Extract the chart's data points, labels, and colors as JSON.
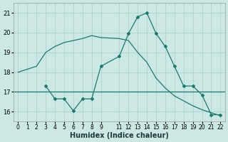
{
  "xlabel": "Humidex (Indice chaleur)",
  "color": "#1a7a6e",
  "bg_color": "#cce8e4",
  "grid_color": "#aacfcc",
  "ylim": [
    15.5,
    21.5
  ],
  "xlim": [
    -0.5,
    22.5
  ],
  "yticks": [
    16,
    17,
    18,
    19,
    20,
    21
  ],
  "xticks": [
    0,
    1,
    2,
    3,
    4,
    5,
    6,
    7,
    8,
    9,
    11,
    12,
    13,
    14,
    15,
    16,
    17,
    18,
    19,
    20,
    21,
    22
  ],
  "hline_y": 17.0,
  "x_smooth": [
    0,
    2,
    3,
    4,
    5,
    6,
    7,
    8,
    9,
    11,
    12,
    13,
    14,
    15,
    16,
    17,
    18,
    19,
    20,
    21,
    22
  ],
  "y_smooth": [
    18.0,
    18.3,
    19.0,
    19.3,
    19.5,
    19.6,
    19.7,
    19.85,
    19.75,
    19.7,
    19.6,
    19.0,
    18.5,
    17.7,
    17.2,
    16.8,
    16.55,
    16.3,
    16.1,
    15.95,
    15.8
  ],
  "x_markers": [
    3,
    4,
    5,
    6,
    7,
    8,
    9,
    11,
    12,
    13,
    14,
    15,
    16,
    17,
    18,
    19,
    20,
    21,
    22
  ],
  "y_markers": [
    17.3,
    16.65,
    16.65,
    16.05,
    16.65,
    16.65,
    18.3,
    18.8,
    19.95,
    20.8,
    21.0,
    19.95,
    19.3,
    18.3,
    17.3,
    17.3,
    16.85,
    15.85,
    15.85
  ],
  "marker_style": "D",
  "marker_size": 2.0,
  "line_width": 0.9
}
